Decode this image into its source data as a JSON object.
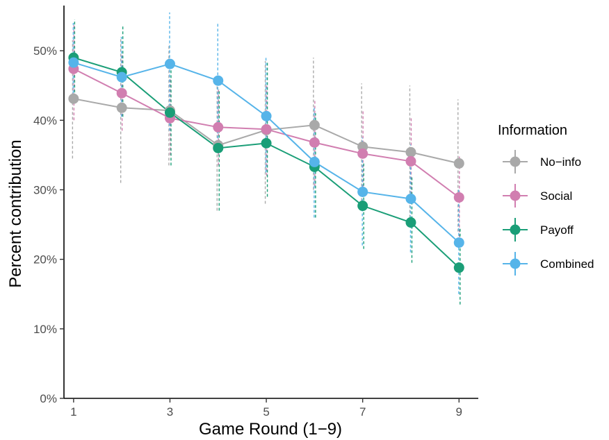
{
  "chart_data": {
    "type": "line",
    "xlabel": "Game Round (1−9)",
    "ylabel": "Percent contribution",
    "x": [
      1,
      2,
      3,
      4,
      5,
      6,
      7,
      8,
      9
    ],
    "xticks": [
      1,
      3,
      5,
      7,
      9
    ],
    "xlim": [
      0.8,
      9.4
    ],
    "ylim": [
      0,
      56.5
    ],
    "yticks": [
      0,
      10,
      20,
      30,
      40,
      50
    ],
    "ytick_labels": [
      "0%",
      "10%",
      "20%",
      "30%",
      "40%",
      "50%"
    ],
    "grid": false,
    "legend": {
      "title": "Information",
      "position": "right"
    },
    "series": [
      {
        "name": "No−info",
        "color": "#a9a9a9",
        "values": [
          43.1,
          41.8,
          41.4,
          36.4,
          38.6,
          39.3,
          36.2,
          35.4,
          33.8
        ],
        "err_low": [
          34.5,
          31.0,
          33.5,
          27.0,
          28.0,
          30.0,
          27.0,
          26.0,
          24.0
        ],
        "err_high": [
          51.5,
          52.0,
          51.0,
          45.5,
          48.5,
          49.0,
          45.3,
          45.0,
          43.0
        ]
      },
      {
        "name": "Social",
        "color": "#d17eb0",
        "values": [
          47.4,
          43.9,
          40.3,
          39.0,
          38.7,
          36.8,
          35.2,
          34.1,
          28.9
        ],
        "err_low": [
          40.0,
          38.5,
          35.0,
          33.5,
          32.0,
          30.5,
          29.0,
          28.0,
          22.5
        ],
        "err_high": [
          54.0,
          49.5,
          46.0,
          44.5,
          45.0,
          43.0,
          41.5,
          40.5,
          35.0
        ]
      },
      {
        "name": "Payoff",
        "color": "#1a9e77",
        "values": [
          49.0,
          46.9,
          41.1,
          36.0,
          36.7,
          33.3,
          27.7,
          25.3,
          18.8
        ],
        "err_low": [
          44.0,
          40.5,
          33.5,
          27.0,
          29.0,
          26.0,
          21.5,
          19.5,
          13.5
        ],
        "err_high": [
          54.5,
          53.5,
          48.5,
          44.5,
          48.5,
          41.0,
          34.0,
          32.0,
          24.5
        ]
      },
      {
        "name": "Combined",
        "color": "#56b4e9",
        "values": [
          48.3,
          46.2,
          48.1,
          45.7,
          40.6,
          34.0,
          29.7,
          28.7,
          22.4
        ],
        "err_low": [
          42.5,
          40.5,
          38.5,
          36.0,
          32.5,
          26.0,
          22.0,
          21.0,
          15.0
        ],
        "err_high": [
          54.0,
          52.0,
          55.5,
          54.0,
          49.0,
          42.0,
          37.5,
          36.5,
          30.0
        ]
      }
    ]
  }
}
